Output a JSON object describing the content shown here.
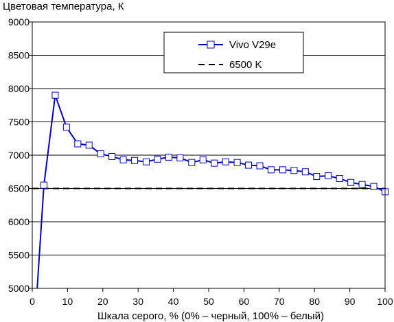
{
  "chart_data": {
    "type": "line",
    "title": "",
    "ylabel": "Цветовая температура, К",
    "xlabel": "Шкала серого, % (0% – черный, 100% – белый)",
    "xlim": [
      0,
      100
    ],
    "ylim": [
      5000,
      9000
    ],
    "xticks": [
      0,
      10,
      20,
      30,
      40,
      50,
      60,
      70,
      80,
      90,
      100
    ],
    "yticks": [
      5000,
      5500,
      6000,
      6500,
      7000,
      7500,
      8000,
      8500,
      9000
    ],
    "grid": "horizontal",
    "legend_position": "top-right",
    "series": [
      {
        "name": "Vivo V29e",
        "color": "#0000cc",
        "marker": "square",
        "x": [
          1.4,
          3.3,
          6.5,
          9.7,
          12.9,
          16.1,
          19.4,
          22.6,
          25.8,
          29.0,
          32.3,
          35.5,
          38.7,
          41.9,
          45.2,
          48.4,
          51.6,
          54.8,
          58.1,
          61.3,
          64.5,
          67.7,
          71.0,
          74.2,
          77.4,
          80.6,
          83.9,
          87.1,
          90.3,
          93.5,
          96.8,
          100
        ],
        "values": [
          5000,
          6550,
          7900,
          7420,
          7170,
          7150,
          7020,
          6980,
          6930,
          6920,
          6900,
          6940,
          6970,
          6960,
          6890,
          6930,
          6880,
          6900,
          6890,
          6850,
          6840,
          6780,
          6780,
          6770,
          6750,
          6680,
          6690,
          6650,
          6590,
          6560,
          6530,
          6450
        ]
      },
      {
        "name": "6500 K",
        "color": "#000000",
        "dash": "dashed",
        "x": [
          0,
          100
        ],
        "values": [
          6500,
          6500
        ]
      }
    ]
  }
}
